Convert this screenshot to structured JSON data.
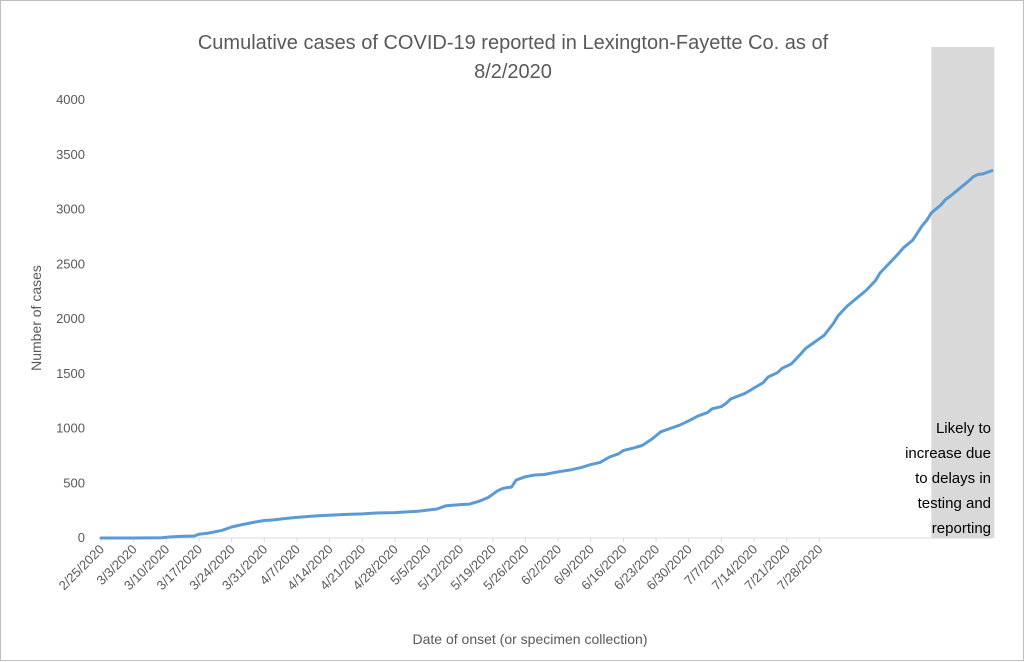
{
  "chart_data": {
    "type": "line",
    "title": "Cumulative cases of COVID-19 reported in Lexington-Fayette Co.  as of 8/2/2020",
    "title_lines": [
      "Cumulative cases of COVID-19 reported in Lexington-Fayette Co.  as of",
      "8/2/2020"
    ],
    "xlabel": "Date of onset (or specimen collection)",
    "ylabel": "Number of cases",
    "ylim": [
      0,
      4000
    ],
    "y_ticks": [
      0,
      500,
      1000,
      1500,
      2000,
      2500,
      3000,
      3500,
      4000
    ],
    "x_tick_labels": [
      "2/25/2020",
      "3/3/2020",
      "3/10/2020",
      "3/17/2020",
      "3/24/2020",
      "3/31/2020",
      "4/7/2020",
      "4/14/2020",
      "4/21/2020",
      "4/28/2020",
      "5/5/2020",
      "5/12/2020",
      "5/19/2020",
      "5/26/2020",
      "6/2/2020",
      "6/9/2020",
      "6/16/2020",
      "6/23/2020",
      "6/30/2020",
      "7/7/2020",
      "7/14/2020",
      "7/21/2020",
      "7/28/2020"
    ],
    "x_start": "2/25/2020",
    "x_days": 159,
    "series": [
      {
        "name": "Cumulative cases",
        "color": "#5b9bd5",
        "points": [
          [
            0,
            0
          ],
          [
            7,
            0
          ],
          [
            13,
            3
          ],
          [
            15,
            10
          ],
          [
            17,
            15
          ],
          [
            20,
            18
          ],
          [
            21,
            35
          ],
          [
            23,
            45
          ],
          [
            26,
            70
          ],
          [
            28,
            100
          ],
          [
            30,
            120
          ],
          [
            33,
            145
          ],
          [
            35,
            160
          ],
          [
            37,
            165
          ],
          [
            40,
            180
          ],
          [
            42,
            188
          ],
          [
            45,
            198
          ],
          [
            47,
            205
          ],
          [
            50,
            210
          ],
          [
            52,
            215
          ],
          [
            56,
            220
          ],
          [
            59,
            228
          ],
          [
            63,
            232
          ],
          [
            66,
            240
          ],
          [
            68,
            245
          ],
          [
            70,
            255
          ],
          [
            72,
            265
          ],
          [
            74,
            295
          ],
          [
            77,
            305
          ],
          [
            79,
            310
          ],
          [
            81,
            335
          ],
          [
            83,
            370
          ],
          [
            84,
            400
          ],
          [
            85,
            430
          ],
          [
            86,
            450
          ],
          [
            87,
            460
          ],
          [
            88,
            465
          ],
          [
            89,
            530
          ],
          [
            91,
            560
          ],
          [
            93,
            575
          ],
          [
            95,
            580
          ],
          [
            98,
            605
          ],
          [
            101,
            625
          ],
          [
            103,
            645
          ],
          [
            105,
            670
          ],
          [
            107,
            690
          ],
          [
            109,
            740
          ],
          [
            111,
            770
          ],
          [
            112,
            800
          ],
          [
            114,
            820
          ],
          [
            116,
            845
          ],
          [
            118,
            900
          ],
          [
            120,
            970
          ],
          [
            122,
            1000
          ],
          [
            124,
            1030
          ],
          [
            126,
            1070
          ],
          [
            128,
            1115
          ],
          [
            130,
            1145
          ],
          [
            131,
            1180
          ],
          [
            133,
            1200
          ],
          [
            134,
            1230
          ],
          [
            135,
            1270
          ],
          [
            138,
            1320
          ],
          [
            140,
            1370
          ],
          [
            142,
            1420
          ],
          [
            143,
            1470
          ],
          [
            145,
            1510
          ],
          [
            146,
            1550
          ],
          [
            148,
            1590
          ],
          [
            150,
            1680
          ],
          [
            151,
            1730
          ],
          [
            153,
            1790
          ],
          [
            155,
            1850
          ],
          [
            157,
            1960
          ],
          [
            158,
            2030
          ],
          [
            160,
            2120
          ],
          [
            162,
            2190
          ],
          [
            164,
            2260
          ],
          [
            166,
            2350
          ],
          [
            167,
            2420
          ],
          [
            169,
            2510
          ],
          [
            171,
            2600
          ],
          [
            172,
            2650
          ],
          [
            174,
            2720
          ],
          [
            176,
            2850
          ],
          [
            177,
            2900
          ],
          [
            178,
            2970
          ],
          [
            180,
            3040
          ],
          [
            181,
            3090
          ],
          [
            182,
            3120
          ],
          [
            184,
            3190
          ],
          [
            186,
            3260
          ],
          [
            187,
            3300
          ],
          [
            188,
            3320
          ],
          [
            189,
            3325
          ],
          [
            190,
            3340
          ],
          [
            191,
            3355
          ]
        ]
      }
    ],
    "shaded_region_days": [
      178,
      191.5
    ],
    "shaded_color": "#d9d9d9",
    "annotation_lines": [
      "Likely to",
      "increase due",
      "to delays in",
      "testing and",
      "reporting"
    ]
  }
}
